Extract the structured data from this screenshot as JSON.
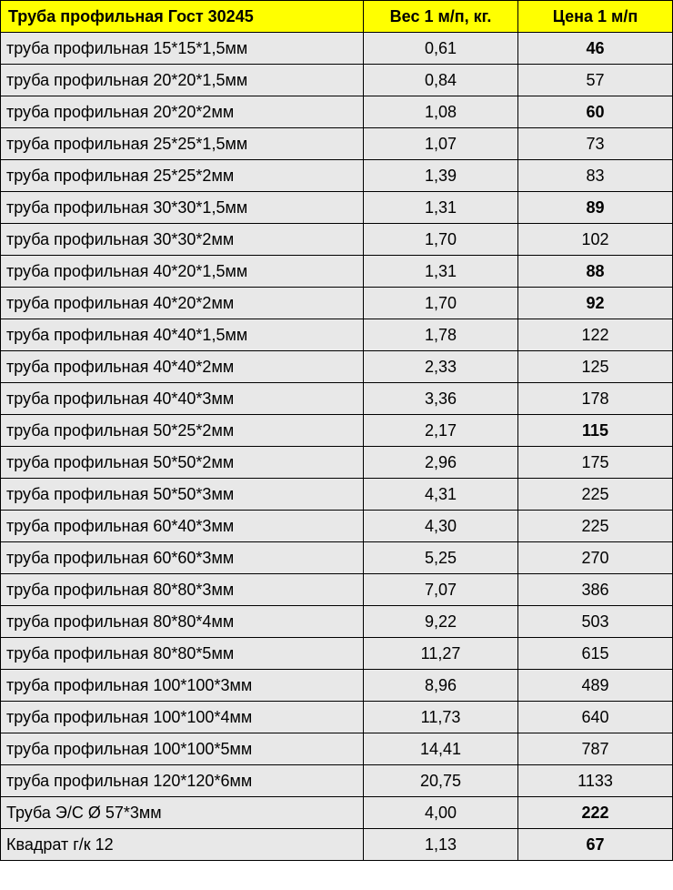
{
  "table": {
    "type": "table",
    "header_bg": "#ffff00",
    "row_bg": "#e8e8e8",
    "border_color": "#000000",
    "font_family": "Verdana",
    "header_fontsize": 18,
    "cell_fontsize": 18,
    "columns": [
      {
        "label": "Труба профильная Гост 30245",
        "width_pct": 54,
        "align_header": "left",
        "align_cell": "left"
      },
      {
        "label": "Вес 1 м/п, кг.",
        "width_pct": 23,
        "align_header": "center",
        "align_cell": "center"
      },
      {
        "label": "Цена 1 м/п",
        "width_pct": 23,
        "align_header": "center",
        "align_cell": "center"
      }
    ],
    "rows": [
      {
        "name": "труба профильная 15*15*1,5мм",
        "weight": "0,61",
        "price": "46",
        "price_bold": true
      },
      {
        "name": "труба профильная 20*20*1,5мм",
        "weight": "0,84",
        "price": "57",
        "price_bold": false
      },
      {
        "name": "труба профильная 20*20*2мм",
        "weight": "1,08",
        "price": "60",
        "price_bold": true
      },
      {
        "name": "труба профильная 25*25*1,5мм",
        "weight": "1,07",
        "price": "73",
        "price_bold": false
      },
      {
        "name": "труба профильная 25*25*2мм",
        "weight": "1,39",
        "price": "83",
        "price_bold": false
      },
      {
        "name": "труба профильная 30*30*1,5мм",
        "weight": "1,31",
        "price": "89",
        "price_bold": true
      },
      {
        "name": "труба профильная 30*30*2мм",
        "weight": "1,70",
        "price": "102",
        "price_bold": false
      },
      {
        "name": "труба профильная 40*20*1,5мм",
        "weight": "1,31",
        "price": "88",
        "price_bold": true
      },
      {
        "name": "труба профильная 40*20*2мм",
        "weight": "1,70",
        "price": "92",
        "price_bold": true
      },
      {
        "name": "труба профильная 40*40*1,5мм",
        "weight": "1,78",
        "price": "122",
        "price_bold": false
      },
      {
        "name": "труба профильная 40*40*2мм",
        "weight": "2,33",
        "price": "125",
        "price_bold": false
      },
      {
        "name": "труба профильная 40*40*3мм",
        "weight": "3,36",
        "price": "178",
        "price_bold": false
      },
      {
        "name": "труба профильная 50*25*2мм",
        "weight": "2,17",
        "price": "115",
        "price_bold": true
      },
      {
        "name": "труба профильная 50*50*2мм",
        "weight": "2,96",
        "price": "175",
        "price_bold": false
      },
      {
        "name": "труба профильная 50*50*3мм",
        "weight": "4,31",
        "price": "225",
        "price_bold": false
      },
      {
        "name": "труба профильная 60*40*3мм",
        "weight": "4,30",
        "price": "225",
        "price_bold": false
      },
      {
        "name": "труба профильная 60*60*3мм",
        "weight": "5,25",
        "price": "270",
        "price_bold": false
      },
      {
        "name": "труба профильная 80*80*3мм",
        "weight": "7,07",
        "price": "386",
        "price_bold": false
      },
      {
        "name": "труба профильная 80*80*4мм",
        "weight": "9,22",
        "price": "503",
        "price_bold": false
      },
      {
        "name": "труба профильная 80*80*5мм",
        "weight": "11,27",
        "price": "615",
        "price_bold": false
      },
      {
        "name": "труба профильная 100*100*3мм",
        "weight": "8,96",
        "price": "489",
        "price_bold": false
      },
      {
        "name": "труба профильная 100*100*4мм",
        "weight": "11,73",
        "price": "640",
        "price_bold": false
      },
      {
        "name": "труба профильная 100*100*5мм",
        "weight": "14,41",
        "price": "787",
        "price_bold": false
      },
      {
        "name": "труба профильная 120*120*6мм",
        "weight": "20,75",
        "price": "1133",
        "price_bold": false
      },
      {
        "name": "Труба Э/С Ø 57*3мм",
        "weight": "4,00",
        "price": "222",
        "price_bold": true
      },
      {
        "name": "Квадрат г/к 12",
        "weight": "1,13",
        "price": "67",
        "price_bold": true
      }
    ]
  }
}
